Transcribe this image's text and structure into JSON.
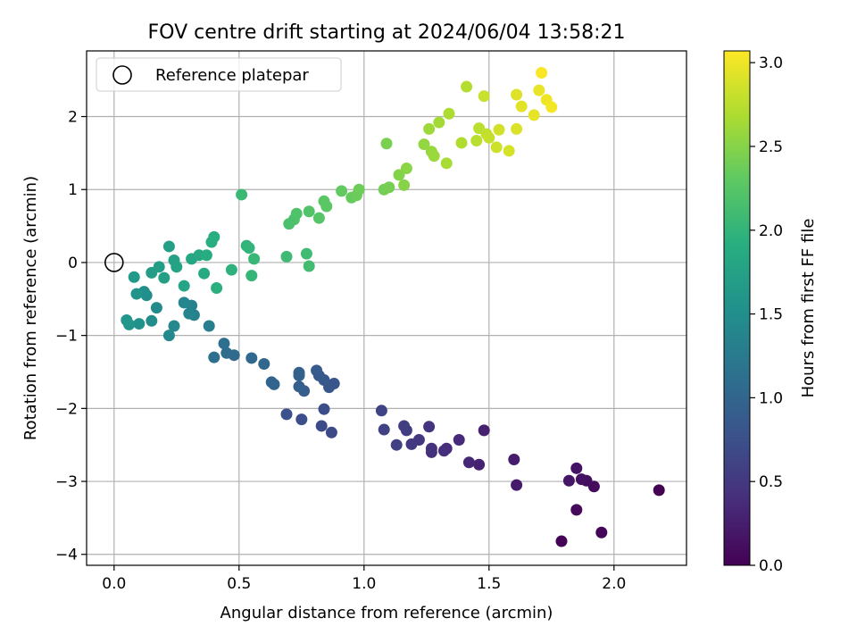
{
  "chart_data": {
    "type": "scatter",
    "title": "FOV centre drift starting at 2024/06/04 13:58:21",
    "xlabel": "Angular distance from reference (arcmin)",
    "ylabel": "Rotation from reference (arcmin)",
    "xlim": [
      -0.11,
      2.29
    ],
    "ylim": [
      -4.15,
      2.9
    ],
    "xticks": [
      0.0,
      0.5,
      1.0,
      1.5,
      2.0
    ],
    "xtick_labels": [
      "0.0",
      "0.5",
      "1.0",
      "1.5",
      "2.0"
    ],
    "yticks": [
      -4,
      -3,
      -2,
      -1,
      0,
      1,
      2
    ],
    "ytick_labels": [
      "−4",
      "−3",
      "−2",
      "−1",
      "0",
      "1",
      "2"
    ],
    "grid": true,
    "legend": {
      "position": "top-left",
      "entries": [
        {
          "label": "Reference platepar",
          "marker": "open-circle"
        }
      ]
    },
    "reference_point": {
      "x": 0.0,
      "y": 0.0
    },
    "colorbar": {
      "label": "Hours from first FF file",
      "colormap": "viridis",
      "range": [
        0.0,
        3.07
      ],
      "ticks": [
        0.0,
        0.5,
        1.0,
        1.5,
        2.0,
        2.5,
        3.0
      ],
      "tick_labels": [
        "0.0",
        "0.5",
        "1.0",
        "1.5",
        "2.0",
        "2.5",
        "3.0"
      ]
    },
    "points": [
      [
        2.18,
        -3.12,
        0.0
      ],
      [
        1.79,
        -3.82,
        0.02
      ],
      [
        1.95,
        -3.7,
        0.04
      ],
      [
        1.85,
        -3.39,
        0.08
      ],
      [
        1.92,
        -3.07,
        0.1
      ],
      [
        1.89,
        -2.99,
        0.12
      ],
      [
        1.87,
        -2.97,
        0.14
      ],
      [
        1.85,
        -2.82,
        0.16
      ],
      [
        1.82,
        -2.99,
        0.18
      ],
      [
        1.61,
        -3.05,
        0.22
      ],
      [
        1.6,
        -2.7,
        0.24
      ],
      [
        1.48,
        -2.3,
        0.28
      ],
      [
        1.46,
        -2.77,
        0.3
      ],
      [
        1.42,
        -2.74,
        0.32
      ],
      [
        1.38,
        -2.43,
        0.36
      ],
      [
        1.33,
        -2.55,
        0.38
      ],
      [
        1.32,
        -2.58,
        0.4
      ],
      [
        1.27,
        -2.6,
        0.42
      ],
      [
        1.27,
        -2.55,
        0.44
      ],
      [
        1.26,
        -2.25,
        0.46
      ],
      [
        1.22,
        -2.43,
        0.5
      ],
      [
        1.19,
        -2.49,
        0.52
      ],
      [
        1.17,
        -2.3,
        0.54
      ],
      [
        1.16,
        -2.24,
        0.56
      ],
      [
        1.13,
        -2.5,
        0.58
      ],
      [
        1.08,
        -2.29,
        0.6
      ],
      [
        1.07,
        -2.03,
        0.62
      ],
      [
        0.87,
        -2.33,
        0.68
      ],
      [
        0.83,
        -2.24,
        0.7
      ],
      [
        0.84,
        -2.01,
        0.72
      ],
      [
        0.75,
        -2.15,
        0.74
      ],
      [
        0.69,
        -2.08,
        0.76
      ],
      [
        0.88,
        -1.66,
        0.8
      ],
      [
        0.86,
        -1.71,
        0.82
      ],
      [
        0.84,
        -1.61,
        0.84
      ],
      [
        0.82,
        -1.55,
        0.86
      ],
      [
        0.81,
        -1.48,
        0.88
      ],
      [
        0.76,
        -1.76,
        0.9
      ],
      [
        0.74,
        -1.7,
        0.92
      ],
      [
        0.74,
        -1.51,
        0.94
      ],
      [
        0.74,
        -1.55,
        0.95
      ],
      [
        0.64,
        -1.67,
        0.98
      ],
      [
        0.63,
        -1.64,
        1.0
      ],
      [
        0.6,
        -1.39,
        1.02
      ],
      [
        0.55,
        -1.31,
        1.04
      ],
      [
        0.48,
        -1.27,
        1.06
      ],
      [
        0.45,
        -1.24,
        1.08
      ],
      [
        0.44,
        -1.11,
        1.1
      ],
      [
        0.4,
        -1.3,
        1.12
      ],
      [
        0.38,
        -0.87,
        1.3
      ],
      [
        0.32,
        -0.72,
        1.34
      ],
      [
        0.31,
        -0.59,
        1.36
      ],
      [
        0.3,
        -0.7,
        1.38
      ],
      [
        0.28,
        -0.55,
        1.4
      ],
      [
        0.24,
        -0.87,
        1.42
      ],
      [
        0.22,
        -1.0,
        1.44
      ],
      [
        0.17,
        -0.62,
        1.46
      ],
      [
        0.15,
        -0.8,
        1.48
      ],
      [
        0.13,
        -0.45,
        1.5
      ],
      [
        0.12,
        -0.4,
        1.52
      ],
      [
        0.1,
        -0.84,
        1.54
      ],
      [
        0.09,
        -0.43,
        1.56
      ],
      [
        0.06,
        -0.85,
        1.58
      ],
      [
        0.05,
        -0.79,
        1.6
      ],
      [
        0.08,
        -0.2,
        1.64
      ],
      [
        0.15,
        -0.14,
        1.68
      ],
      [
        0.18,
        -0.06,
        1.7
      ],
      [
        0.2,
        -0.21,
        1.72
      ],
      [
        0.22,
        0.22,
        1.74
      ],
      [
        0.24,
        0.03,
        1.76
      ],
      [
        0.25,
        -0.06,
        1.78
      ],
      [
        0.28,
        -0.32,
        1.8
      ],
      [
        0.31,
        0.05,
        1.82
      ],
      [
        0.34,
        0.1,
        1.84
      ],
      [
        0.36,
        -0.15,
        1.86
      ],
      [
        0.37,
        0.1,
        1.88
      ],
      [
        0.4,
        0.35,
        1.9
      ],
      [
        0.39,
        0.28,
        1.92
      ],
      [
        0.41,
        -0.35,
        1.94
      ],
      [
        0.47,
        -0.1,
        1.96
      ],
      [
        0.53,
        0.23,
        1.98
      ],
      [
        0.54,
        0.2,
        2.0
      ],
      [
        0.55,
        -0.18,
        2.02
      ],
      [
        0.56,
        0.05,
        2.04
      ],
      [
        0.51,
        0.93,
        2.06
      ],
      [
        0.69,
        0.08,
        2.08
      ],
      [
        0.77,
        0.12,
        2.1
      ],
      [
        0.78,
        -0.05,
        2.12
      ],
      [
        0.7,
        0.53,
        2.16
      ],
      [
        0.72,
        0.59,
        2.18
      ],
      [
        0.73,
        0.67,
        2.2
      ],
      [
        0.78,
        0.7,
        2.22
      ],
      [
        0.82,
        0.61,
        2.24
      ],
      [
        0.84,
        0.84,
        2.26
      ],
      [
        0.85,
        0.77,
        2.28
      ],
      [
        0.91,
        0.98,
        2.32
      ],
      [
        0.95,
        0.89,
        2.34
      ],
      [
        0.97,
        0.92,
        2.36
      ],
      [
        0.98,
        1.0,
        2.38
      ],
      [
        1.08,
        1.0,
        2.4
      ],
      [
        1.1,
        1.03,
        2.42
      ],
      [
        1.09,
        1.63,
        2.44
      ],
      [
        1.14,
        1.2,
        2.48
      ],
      [
        1.16,
        1.06,
        2.5
      ],
      [
        1.17,
        1.29,
        2.52
      ],
      [
        1.24,
        1.62,
        2.56
      ],
      [
        1.27,
        1.52,
        2.58
      ],
      [
        1.28,
        1.46,
        2.6
      ],
      [
        1.26,
        1.83,
        2.62
      ],
      [
        1.3,
        1.92,
        2.64
      ],
      [
        1.33,
        1.36,
        2.66
      ],
      [
        1.34,
        2.04,
        2.68
      ],
      [
        1.39,
        1.64,
        2.7
      ],
      [
        1.41,
        2.41,
        2.72
      ],
      [
        1.45,
        1.67,
        2.74
      ],
      [
        1.46,
        1.84,
        2.76
      ],
      [
        1.49,
        1.76,
        2.78
      ],
      [
        1.5,
        1.71,
        2.8
      ],
      [
        1.48,
        2.28,
        2.82
      ],
      [
        1.53,
        1.58,
        2.84
      ],
      [
        1.54,
        1.82,
        2.86
      ],
      [
        1.58,
        1.53,
        2.88
      ],
      [
        1.61,
        1.83,
        2.9
      ],
      [
        1.61,
        2.3,
        2.92
      ],
      [
        1.63,
        2.14,
        2.94
      ],
      [
        1.68,
        2.02,
        2.96
      ],
      [
        1.7,
        2.36,
        2.98
      ],
      [
        1.73,
        2.23,
        3.0
      ],
      [
        1.75,
        2.13,
        3.02
      ],
      [
        1.71,
        2.6,
        3.05
      ]
    ]
  }
}
